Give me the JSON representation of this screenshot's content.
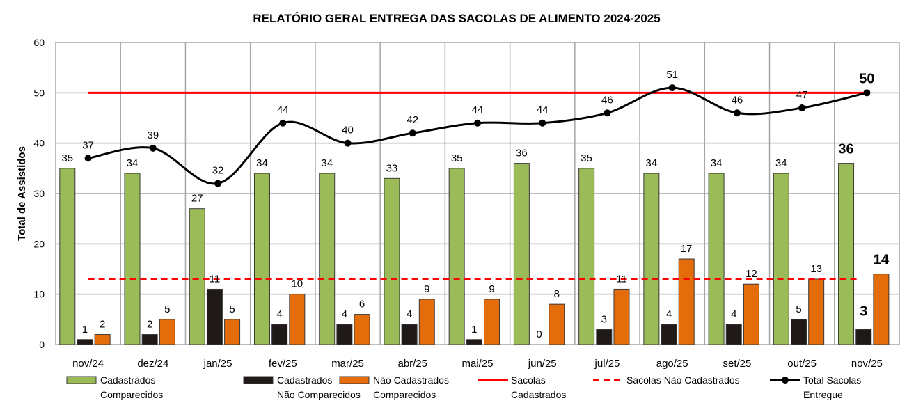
{
  "chart_data": {
    "type": "bar",
    "title": "RELATÓRIO GERAL ENTREGA DAS SACOLAS DE ALIMENTO 2024-2025",
    "xlabel": "",
    "ylabel": "Total de Assistidos",
    "ylim": [
      0,
      60
    ],
    "yticks": [
      0,
      10,
      20,
      30,
      40,
      50,
      60
    ],
    "grid": true,
    "legend_position": "bottom",
    "categories": [
      "nov/24",
      "dez/24",
      "jan/25",
      "fev/25",
      "mar/25",
      "abr/25",
      "mai/25",
      "jun/25",
      "jul/25",
      "ago/25",
      "set/25",
      "out/25",
      "nov/25"
    ],
    "series": [
      {
        "name": "Cadastrados Comparecidos",
        "type": "bar",
        "color": "#9bbb59",
        "values": [
          35,
          34,
          27,
          34,
          34,
          33,
          35,
          36,
          35,
          34,
          34,
          34,
          36
        ]
      },
      {
        "name": "Cadastrados Não Comparecidos",
        "type": "bar",
        "color": "#1f1a17",
        "values": [
          1,
          2,
          11,
          4,
          4,
          4,
          1,
          0,
          3,
          4,
          4,
          5,
          3
        ]
      },
      {
        "name": "Não Cadastrados Comparecidos",
        "type": "bar",
        "color": "#e46c0a",
        "values": [
          2,
          5,
          5,
          10,
          6,
          9,
          9,
          8,
          11,
          17,
          12,
          13,
          14
        ]
      },
      {
        "name": "Sacolas Cadastrados",
        "type": "line",
        "color": "#ff0000",
        "style": "solid",
        "values": [
          50,
          50,
          50,
          50,
          50,
          50,
          50,
          50,
          50,
          50,
          50,
          50,
          50
        ]
      },
      {
        "name": "Sacolas Não Cadastrados",
        "type": "line",
        "color": "#ff0000",
        "style": "dashed",
        "values": [
          13,
          13,
          13,
          13,
          13,
          13,
          13,
          13,
          13,
          13,
          13,
          13,
          13
        ]
      },
      {
        "name": "Total Sacolas Entregue",
        "type": "line",
        "color": "#000000",
        "style": "smooth-markers",
        "values": [
          37,
          39,
          32,
          44,
          40,
          42,
          44,
          44,
          46,
          51,
          46,
          47,
          50
        ]
      }
    ],
    "legend": [
      {
        "line1": "Cadastrados",
        "line2": "Comparecidos",
        "kind": "bar",
        "color": "#9bbb59"
      },
      {
        "line1": "Cadastrados",
        "line2": "Não Comparecidos",
        "kind": "bar",
        "color": "#1f1a17"
      },
      {
        "line1": "Não Cadastrados",
        "line2": "Comparecidos",
        "kind": "bar",
        "color": "#e46c0a"
      },
      {
        "line1": "Sacolas",
        "line2": "Cadastrados",
        "kind": "line",
        "color": "#ff0000"
      },
      {
        "line1": "Sacolas Não Cadastrados",
        "line2": "",
        "kind": "dashed",
        "color": "#ff0000"
      },
      {
        "line1": "Total Sacolas",
        "line2": "Entregue",
        "kind": "marker-line",
        "color": "#000000"
      }
    ]
  }
}
